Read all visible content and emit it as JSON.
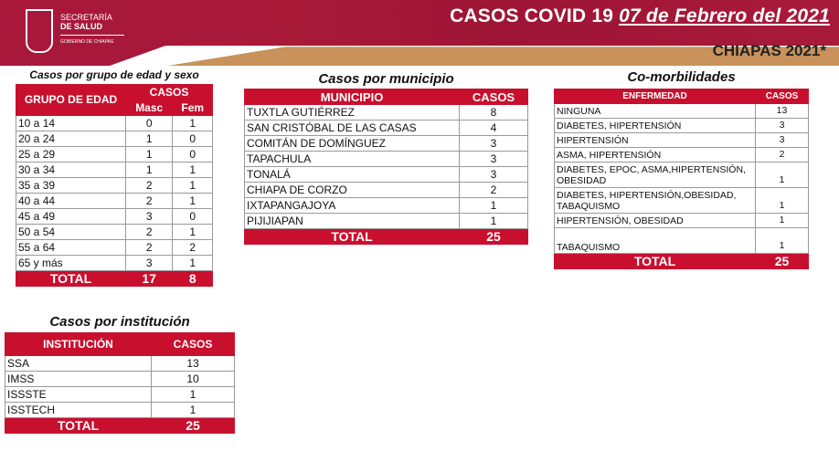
{
  "header": {
    "org_line1": "SECRETARÍA",
    "org_line2": "DE SALUD",
    "org_line3": "GOBIERNO DE CHIAPAS",
    "title": "CASOS COVID 19",
    "date": "07 de Febrero del 2021",
    "subtitle": "CHIAPAS 2021*",
    "colors": {
      "primary": "#c8102e",
      "band": "#c8925a"
    }
  },
  "edad": {
    "caption": "Casos por grupo de edad y sexo",
    "h_grupo": "GRUPO DE EDAD",
    "h_casos": "CASOS",
    "h_masc": "Masc",
    "h_fem": "Fem",
    "rows": [
      [
        "10 a 14",
        "0",
        "1"
      ],
      [
        "20 a 24",
        "1",
        "0"
      ],
      [
        "25 a 29",
        "1",
        "0"
      ],
      [
        "30 a 34",
        "1",
        "1"
      ],
      [
        "35 a 39",
        "2",
        "1"
      ],
      [
        "40 a 44",
        "2",
        "1"
      ],
      [
        "45 a 49",
        "3",
        "0"
      ],
      [
        "50 a 54",
        "2",
        "1"
      ],
      [
        "55 a 64",
        "2",
        "2"
      ],
      [
        "65 y más",
        "3",
        "1"
      ]
    ],
    "total_label": "TOTAL",
    "total_masc": "17",
    "total_fem": "8"
  },
  "municipio": {
    "caption": "Casos por municipio",
    "h1": "MUNICIPIO",
    "h2": "CASOS",
    "rows": [
      [
        "TUXTLA GUTIÉRREZ",
        "8"
      ],
      [
        "SAN CRISTÓBAL DE LAS CASAS",
        "4"
      ],
      [
        "COMITÁN DE DOMÍNGUEZ",
        "3"
      ],
      [
        "TAPACHULA",
        "3"
      ],
      [
        "TONALÁ",
        "3"
      ],
      [
        "CHIAPA DE CORZO",
        "2"
      ],
      [
        "IXTAPANGAJOYA",
        "1"
      ],
      [
        "PIJIJIAPAN",
        "1"
      ]
    ],
    "total_label": "TOTAL",
    "total": "25"
  },
  "comorb": {
    "caption": "Co-morbilidades",
    "h1": "ENFERMEDAD",
    "h2": "CASOS",
    "rows": [
      [
        "NINGUNA",
        "13"
      ],
      [
        "DIABETES, HIPERTENSIÓN",
        "3"
      ],
      [
        "HIPERTENSIÓN",
        "3"
      ],
      [
        "ASMA, HIPERTENSIÓN",
        "2"
      ],
      [
        "DIABETES, EPOC, ASMA,HIPERTENSIÓN, OBESIDAD",
        "1"
      ],
      [
        "DIABETES, HIPERTENSIÓN,OBESIDAD, TABAQUISMO",
        "1"
      ],
      [
        "HIPERTENSIÓN, OBESIDAD",
        "1"
      ],
      [
        "TABAQUISMO",
        "1"
      ]
    ],
    "total_label": "TOTAL",
    "total": "25"
  },
  "institucion": {
    "caption": "Casos por institución",
    "h1": "INSTITUCIÓN",
    "h2": "CASOS",
    "rows": [
      [
        "SSA",
        "13"
      ],
      [
        "IMSS",
        "10"
      ],
      [
        "ISSSTE",
        "1"
      ],
      [
        "ISSTECH",
        "1"
      ]
    ],
    "total_label": "TOTAL",
    "total": "25"
  }
}
